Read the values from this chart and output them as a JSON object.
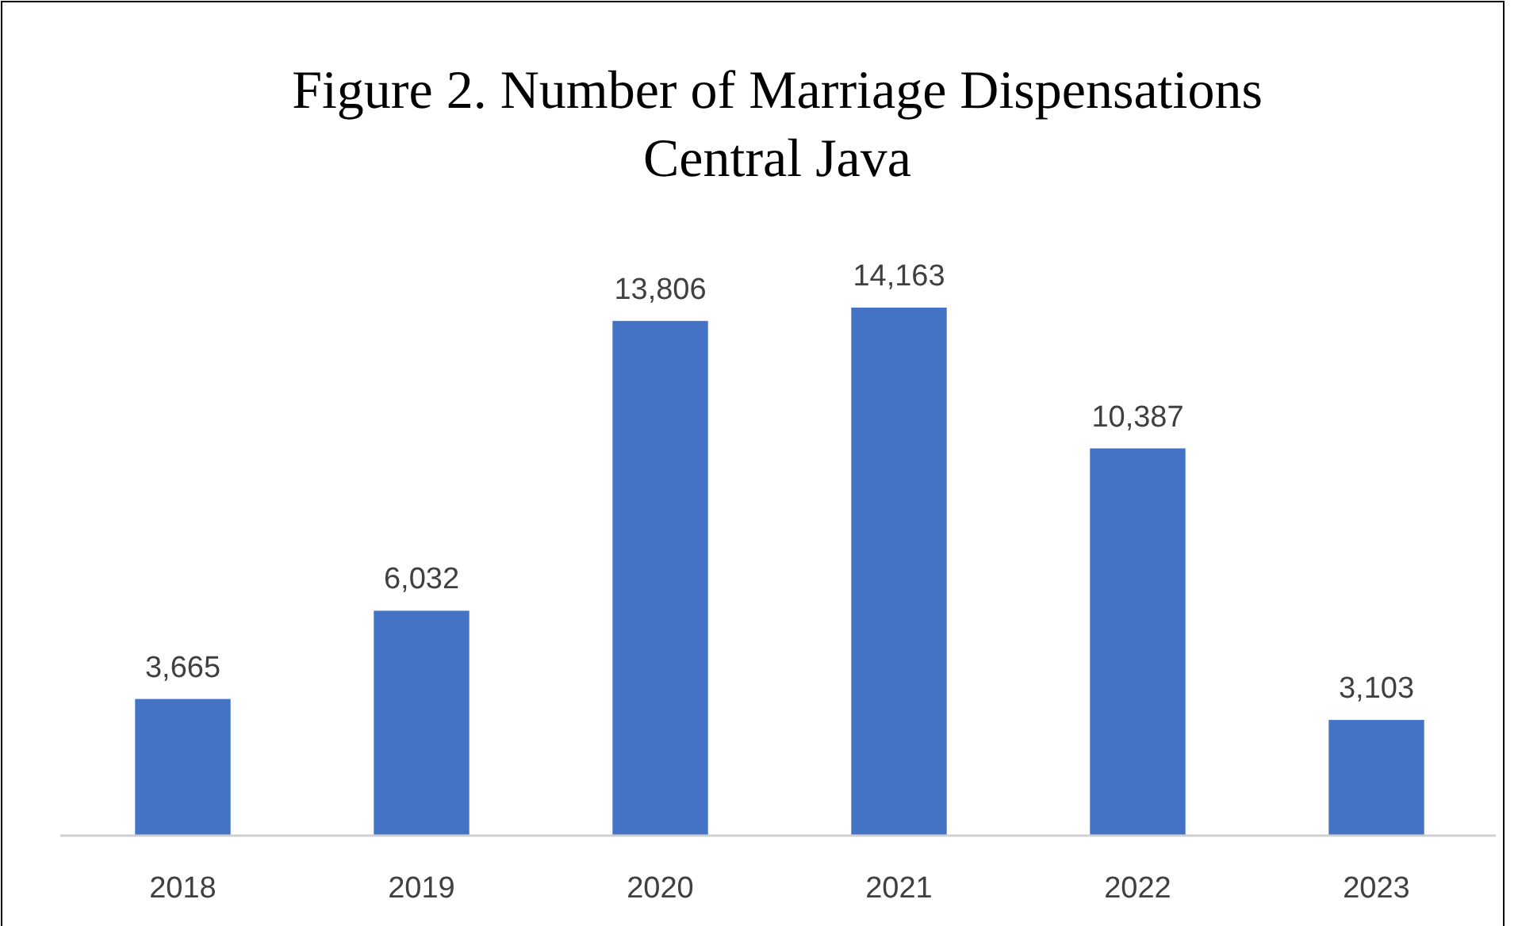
{
  "chart_data": {
    "type": "bar",
    "title": "Figure 2. Number of Marriage Dispensations\nCentral Java",
    "categories": [
      "2018",
      "2019",
      "2020",
      "2021",
      "2022",
      "2023"
    ],
    "values": [
      3665,
      6032,
      13806,
      14163,
      10387,
      3103
    ],
    "value_labels": [
      "3,665",
      "6,032",
      "13,806",
      "14,163",
      "10,387",
      "3,103"
    ],
    "color": "#4472c4",
    "grid": false
  }
}
